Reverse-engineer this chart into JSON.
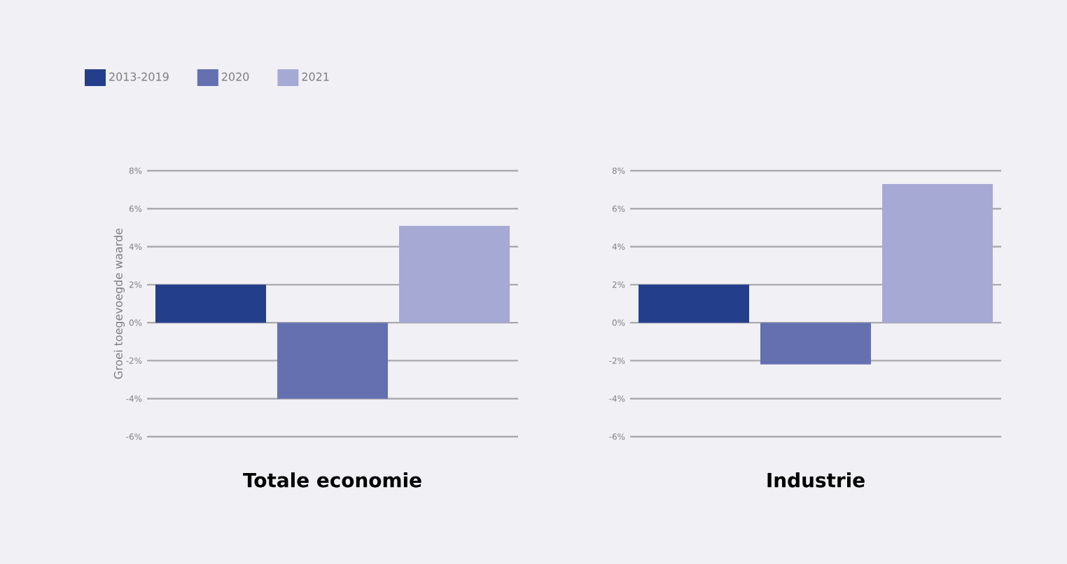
{
  "chart_data": [
    {
      "type": "bar",
      "ylabel": "Groei toegevoegde waarde",
      "categories": [
        "Totale economie"
      ],
      "series": [
        {
          "name": "2013-2019",
          "color": "#233f8c",
          "values": [
            2
          ]
        },
        {
          "name": "2020",
          "color": "#6470b0",
          "values": [
            -4
          ]
        },
        {
          "name": "2021",
          "color": "#a5a9d4",
          "values": [
            5.1
          ]
        }
      ],
      "ylim": [
        -6,
        8
      ],
      "yticks": [
        {
          "value": -6,
          "label": "-6%"
        },
        {
          "value": -4,
          "label": "-4%"
        },
        {
          "value": -2,
          "label": "-2%"
        },
        {
          "value": 0,
          "label": "0%"
        },
        {
          "value": 2,
          "label": "2%"
        },
        {
          "value": 4,
          "label": "4%"
        },
        {
          "value": 6,
          "label": "6%"
        },
        {
          "value": 8,
          "label": "8%"
        }
      ],
      "grid": "y",
      "legend": "top left"
    },
    {
      "type": "bar",
      "categories": [
        "Industrie"
      ],
      "series": [
        {
          "color": "#233f8c",
          "values": [
            2
          ]
        },
        {
          "color": "#6470b0",
          "values": [
            -2.2
          ]
        },
        {
          "color": "#a5a9d4",
          "values": [
            7.3
          ]
        }
      ],
      "ylim": [
        -6,
        8
      ],
      "yticks": [
        {
          "value": -6,
          "label": "-6%"
        },
        {
          "value": -4,
          "label": "-4%"
        },
        {
          "value": -2,
          "label": "-2%"
        },
        {
          "value": 0,
          "label": "0%"
        },
        {
          "value": 2,
          "label": "2%"
        },
        {
          "value": 4,
          "label": "4%"
        },
        {
          "value": 6,
          "label": "6%"
        },
        {
          "value": 8,
          "label": "8%"
        }
      ],
      "grid": "y"
    }
  ]
}
